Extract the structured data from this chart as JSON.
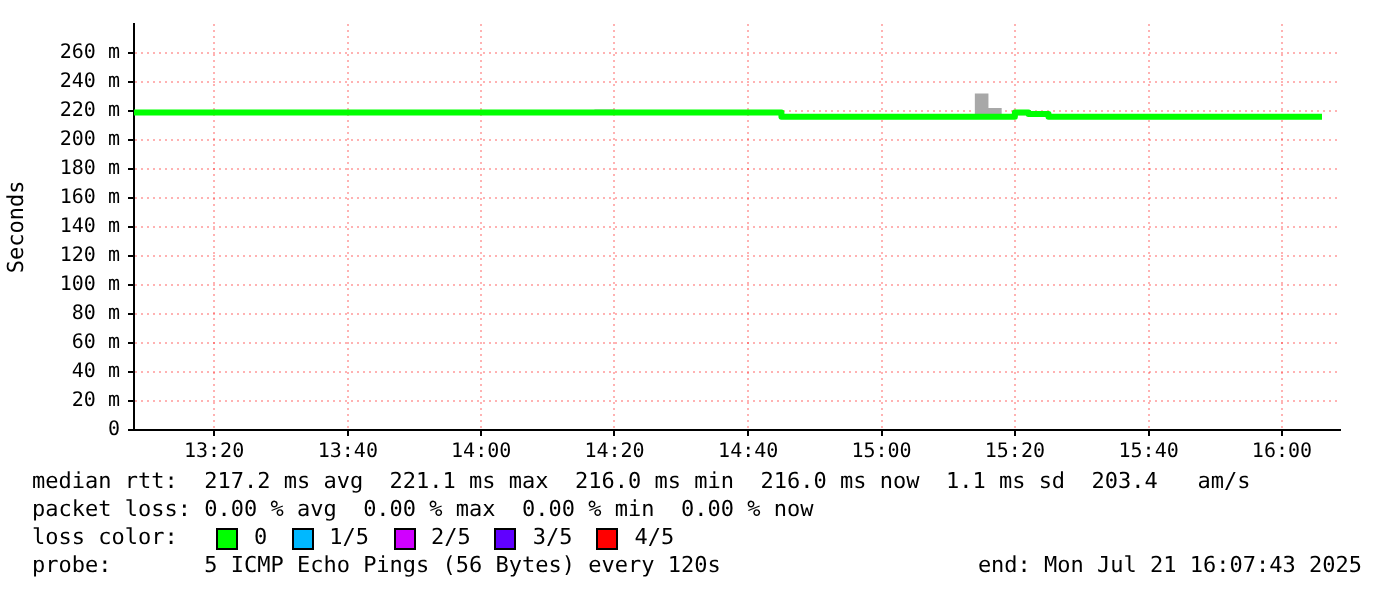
{
  "chart_data": {
    "type": "step",
    "ylabel": "Seconds",
    "x": [
      13.133,
      14.283,
      14.333,
      14.717,
      14.75,
      15.233,
      15.267,
      15.3,
      15.333,
      15.367,
      15.417,
      16.1
    ],
    "series": [
      {
        "name": "0",
        "color": "#00ff00",
        "values": [
          219,
          219,
          219,
          219,
          216,
          216,
          216,
          216,
          219,
          218,
          216,
          216
        ],
        "lower": [
          219,
          219,
          219,
          219,
          216,
          216,
          216,
          216,
          217,
          218,
          216,
          216
        ],
        "upper": [
          219,
          221,
          219,
          220,
          216,
          232,
          222,
          216,
          219,
          218,
          216,
          216
        ]
      },
      {
        "name": "1/5",
        "color": "#00b8ff",
        "values": [
          null,
          null,
          null,
          null,
          null,
          null,
          null,
          null,
          null,
          null,
          null,
          null
        ]
      },
      {
        "name": "2/5",
        "color": "#d000ff",
        "values": [
          null,
          null,
          null,
          null,
          null,
          null,
          null,
          null,
          null,
          null,
          null,
          null
        ]
      },
      {
        "name": "3/5",
        "color": "#6000ff",
        "values": [
          null,
          null,
          null,
          null,
          null,
          null,
          null,
          null,
          null,
          null,
          null,
          null
        ]
      },
      {
        "name": "4/5",
        "color": "#ff0000",
        "values": [
          null,
          null,
          null,
          null,
          null,
          null,
          null,
          null,
          null,
          null,
          null,
          null
        ]
      }
    ],
    "legend_title": "loss color:",
    "legend": "bottom",
    "xlim": [
      13.133,
      16.145
    ],
    "xticks": [
      {
        "value": 13.333,
        "label": "13:20"
      },
      {
        "value": 13.667,
        "label": "13:40"
      },
      {
        "value": 14,
        "label": "14:00"
      },
      {
        "value": 14.333,
        "label": "14:20"
      },
      {
        "value": 14.667,
        "label": "14:40"
      },
      {
        "value": 15,
        "label": "15:00"
      },
      {
        "value": 15.333,
        "label": "15:20"
      },
      {
        "value": 15.667,
        "label": "15:40"
      },
      {
        "value": 16,
        "label": "16:00"
      }
    ],
    "ylim": [
      0,
      280
    ],
    "yticks": [
      0,
      {
        "value": 20,
        "label": "20 m"
      },
      {
        "value": 40,
        "label": "40 m"
      },
      {
        "value": 60,
        "label": "60 m"
      },
      {
        "value": 80,
        "label": "80 m"
      },
      {
        "value": 100,
        "label": "100 m"
      },
      {
        "value": 120,
        "label": "120 m"
      },
      {
        "value": 140,
        "label": "140 m"
      },
      {
        "value": 160,
        "label": "160 m"
      },
      {
        "value": 180,
        "label": "180 m"
      },
      {
        "value": 200,
        "label": "200 m"
      },
      {
        "value": 220,
        "label": "220 m"
      },
      {
        "value": 240,
        "label": "240 m"
      },
      {
        "value": 260,
        "label": "260 m"
      }
    ],
    "grid": true,
    "marker": "none",
    "annotations": [
      "median rtt:  217.2 ms avg  221.1 ms max  216.0 ms min  216.0 ms now  1.1 ms sd  203.4   am/s",
      "packet loss: 0.00 % avg  0.00 % max  0.00 % min  0.00 % now",
      "probe:       5 ICMP Echo Pings (56 Bytes) every 120s",
      "end: Mon Jul 21 16:07:43 2025"
    ]
  }
}
